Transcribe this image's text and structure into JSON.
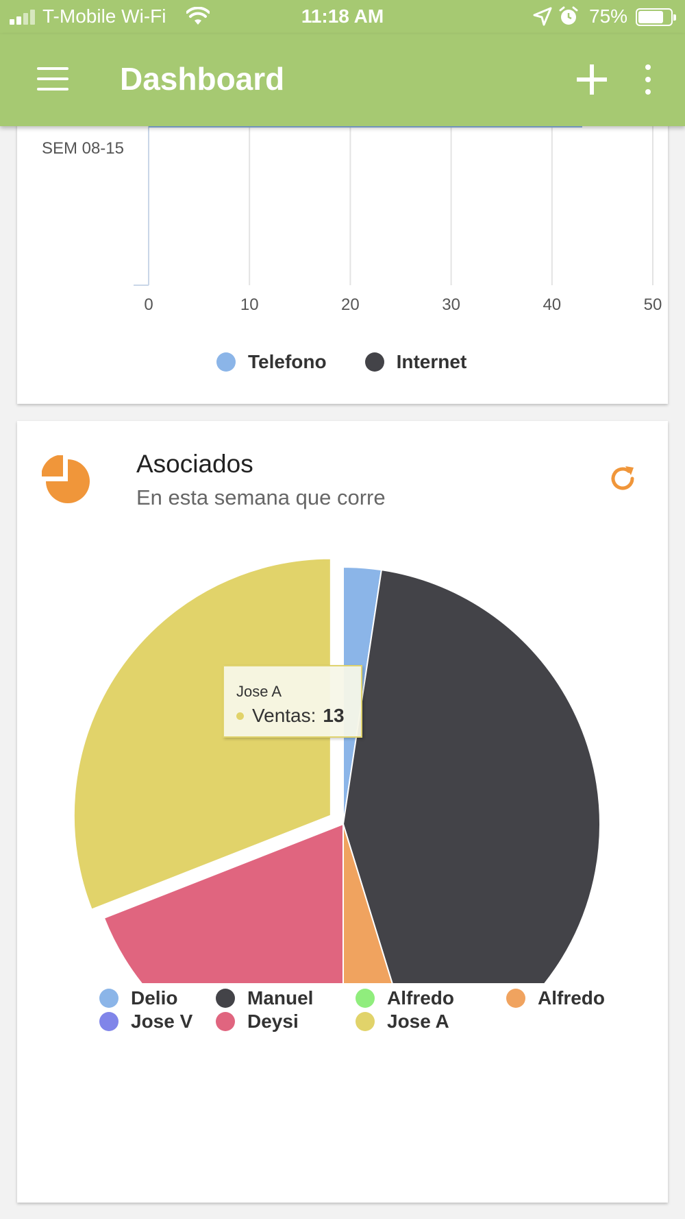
{
  "status_bar": {
    "carrier": "T-Mobile Wi-Fi",
    "time": "11:18 AM",
    "battery": "75%"
  },
  "app_bar": {
    "title": "Dashboard"
  },
  "colors": {
    "app_bar": "#a6c972",
    "accent_orange": "#f0963a",
    "telefono": "#8bb5e8",
    "internet": "#434348"
  },
  "bar_chart": {
    "chart_data": {
      "type": "bar",
      "orientation": "horizontal",
      "categories": [
        "SEM 08-15"
      ],
      "series": [
        {
          "name": "Telefono",
          "values": [
            43
          ],
          "color": "#8bb5e8"
        },
        {
          "name": "Internet",
          "values": [
            0
          ],
          "color": "#434348"
        }
      ],
      "x_ticks": [
        "0",
        "10",
        "20",
        "30",
        "40",
        "50"
      ],
      "xlim": [
        0,
        50
      ],
      "grid": true,
      "legend_position": "bottom"
    }
  },
  "pie_card": {
    "title": "Asociados",
    "subtitle": "En esta semana que corre",
    "tooltip": {
      "title": "Jose A",
      "series_label": "Ventas:",
      "value": "13"
    },
    "chart_data": {
      "type": "pie",
      "series_name": "Ventas",
      "slices": [
        {
          "name": "Delio",
          "value": 1,
          "color": "#8bb5e8"
        },
        {
          "name": "Manuel",
          "value": 18,
          "color": "#434348"
        },
        {
          "name": "Alfredo",
          "value": 0,
          "color": "#90ed7d"
        },
        {
          "name": "Alfredo",
          "value": 2,
          "color": "#f0a35f"
        },
        {
          "name": "Jose V",
          "value": 0,
          "color": "#8085e9"
        },
        {
          "name": "Deysi",
          "value": 8,
          "color": "#e0657f"
        },
        {
          "name": "Jose A",
          "value": 13,
          "color": "#e1d36a",
          "sliced": true
        }
      ],
      "legend_position": "bottom"
    }
  }
}
